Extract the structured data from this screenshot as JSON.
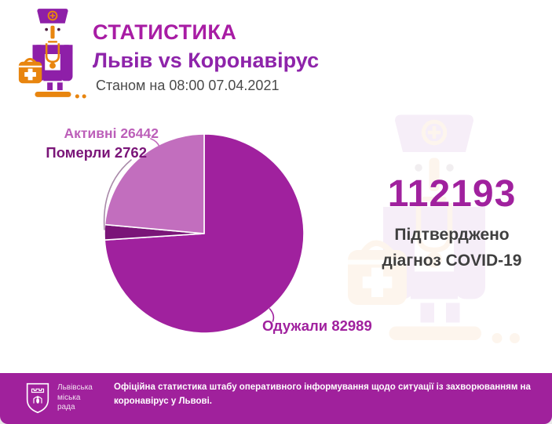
{
  "colors": {
    "magenta": "#A0219E",
    "orchid": "#C26EBE",
    "orchid_label": "#BC5FB9",
    "dark_purple": "#7A1578",
    "title_magenta": "#A81CA4",
    "subtitle_purple": "#8E24AA",
    "text_dark": "#4A4A4A",
    "footer_bg": "#A0219C",
    "doctor_purple": "#8E1FA8",
    "doctor_orange": "#E8850F",
    "leader_grey": "#A98AA9"
  },
  "header": {
    "title": "СТАТИСТИКА",
    "subtitle": "Львів vs Коронавірус",
    "timestamp": "Станом на 08:00 07.04.2021"
  },
  "summary": {
    "confirmed_total": "112193",
    "caption_line1": "Підтверджено",
    "caption_line2": "діагноз COVID-19"
  },
  "chart_data": {
    "type": "pie",
    "title": "Львів vs Коронавірус",
    "subtitle": "Станом на 08:00 07.04.2021",
    "total_confirmed": 112193,
    "start_angle_deg": 0,
    "direction": "clockwise",
    "legend_position": "outside-labels",
    "slices": [
      {
        "key": "recovered",
        "label": "Одужали",
        "value": 82989,
        "color": "#A0219E"
      },
      {
        "key": "deaths",
        "label": "Померли",
        "value": 2762,
        "color": "#7A1578"
      },
      {
        "key": "active",
        "label": "Активні",
        "value": 26442,
        "color": "#C26EBE"
      }
    ]
  },
  "labels": {
    "active": {
      "name": "Активні",
      "value": "26442"
    },
    "deaths": {
      "name": "Померли",
      "value": "2762"
    },
    "recovered": {
      "name": "Одужали",
      "value": "82989"
    }
  },
  "footer": {
    "org_name_line1": "Львівська",
    "org_name_line2": "міська",
    "org_name_line3": "рада",
    "note": "Офіційна статистика штабу оперативного інформування щодо ситуації із захворюванням на коронавірус у Львові."
  }
}
